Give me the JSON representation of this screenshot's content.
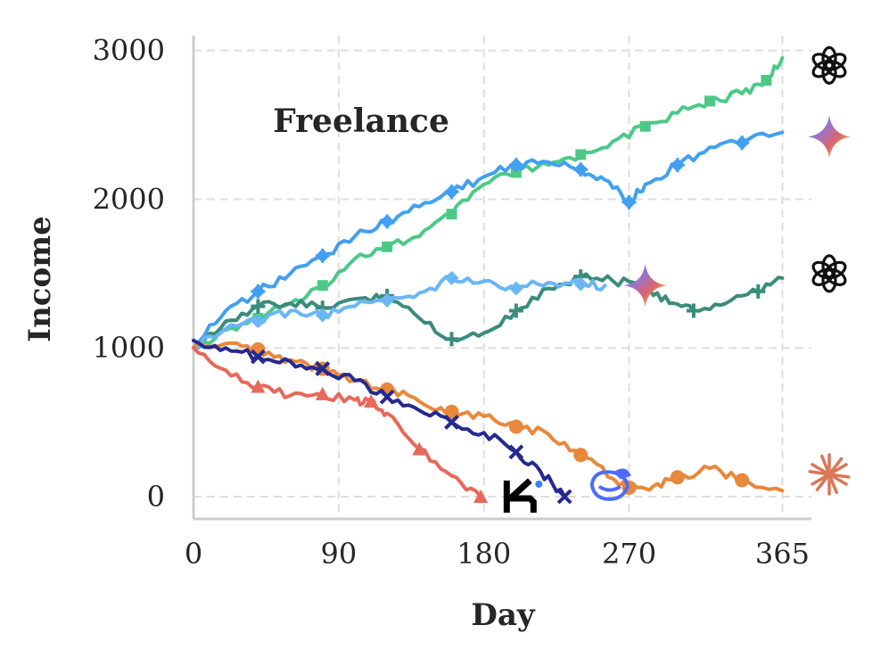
{
  "chart_data": {
    "type": "line",
    "title": "",
    "annotation": "Freelance",
    "xlabel": "Day",
    "ylabel": "Income",
    "xlim": [
      0,
      383
    ],
    "ylim": [
      -150,
      3100
    ],
    "xticks": [
      0,
      90,
      180,
      270,
      365
    ],
    "yticks": [
      0,
      1000,
      2000,
      3000
    ],
    "grid": true,
    "series": [
      {
        "color": "#4cc987",
        "marker": "square",
        "icon": "openai-logo-icon",
        "x": [
          0,
          20,
          40,
          60,
          80,
          100,
          120,
          140,
          160,
          180,
          200,
          220,
          240,
          260,
          280,
          300,
          320,
          340,
          355,
          365
        ],
        "y": [
          1000,
          1120,
          1200,
          1300,
          1420,
          1600,
          1680,
          1750,
          1900,
          2100,
          2180,
          2230,
          2300,
          2390,
          2490,
          2580,
          2660,
          2710,
          2800,
          2950
        ]
      },
      {
        "color": "#42a0f0",
        "marker": "plus-diamond",
        "icon": "gemini-star-icon",
        "x": [
          0,
          20,
          40,
          60,
          80,
          100,
          120,
          140,
          160,
          180,
          200,
          220,
          240,
          255,
          270,
          280,
          300,
          320,
          340,
          365
        ],
        "y": [
          1000,
          1250,
          1380,
          1500,
          1620,
          1750,
          1850,
          1950,
          2050,
          2150,
          2230,
          2250,
          2200,
          2130,
          1980,
          2100,
          2230,
          2350,
          2380,
          2450
        ]
      },
      {
        "color": "#3a8c7c",
        "marker": "plus",
        "icon": "openai-logo-icon",
        "x": [
          0,
          20,
          40,
          60,
          80,
          100,
          120,
          140,
          160,
          180,
          200,
          220,
          240,
          260,
          280,
          295,
          310,
          330,
          350,
          365
        ],
        "y": [
          1000,
          1180,
          1280,
          1300,
          1270,
          1330,
          1350,
          1200,
          1060,
          1100,
          1250,
          1400,
          1480,
          1450,
          1420,
          1300,
          1250,
          1300,
          1380,
          1470
        ]
      },
      {
        "color": "#6bb6f5",
        "marker": "diamond",
        "icon": "gemini-star-icon",
        "x": [
          0,
          20,
          40,
          60,
          80,
          100,
          120,
          140,
          160,
          180,
          200,
          220,
          240,
          255
        ],
        "y": [
          1000,
          1130,
          1180,
          1250,
          1220,
          1280,
          1320,
          1370,
          1470,
          1450,
          1400,
          1440,
          1430,
          1420
        ]
      },
      {
        "color": "#e8883a",
        "marker": "circle",
        "icon": "claude-burst-icon",
        "x": [
          0,
          20,
          40,
          60,
          80,
          100,
          120,
          140,
          160,
          180,
          200,
          220,
          240,
          260,
          270,
          285,
          300,
          320,
          340,
          365
        ],
        "y": [
          1000,
          1030,
          990,
          920,
          860,
          780,
          720,
          640,
          570,
          540,
          470,
          420,
          280,
          120,
          60,
          70,
          130,
          190,
          110,
          40
        ]
      },
      {
        "color": "#252a8f",
        "marker": "x",
        "icon": "kimi-logo-icon",
        "x": [
          0,
          20,
          40,
          60,
          80,
          100,
          120,
          140,
          160,
          180,
          200,
          215,
          230
        ],
        "y": [
          1050,
          1000,
          940,
          910,
          860,
          780,
          670,
          580,
          500,
          430,
          300,
          170,
          0
        ]
      },
      {
        "color": "#e8685a",
        "marker": "triangle",
        "icon": "",
        "x": [
          0,
          20,
          40,
          60,
          80,
          100,
          110,
          120,
          140,
          160,
          178
        ],
        "y": [
          1000,
          850,
          740,
          680,
          690,
          650,
          640,
          560,
          320,
          140,
          0
        ]
      }
    ],
    "end_icons": [
      {
        "name": "openai-logo-icon",
        "value": 2900
      },
      {
        "name": "gemini-star-icon",
        "value": 2420
      },
      {
        "name": "openai-logo-icon",
        "value": 1500
      },
      {
        "name": "claude-burst-icon",
        "value": 150
      }
    ],
    "inline_icons": [
      {
        "name": "kimi-logo-icon",
        "x": 203,
        "y": 0
      },
      {
        "name": "deepseek-whale-icon",
        "x": 258,
        "y": 80
      },
      {
        "name": "gemini-star-icon",
        "x": 280,
        "y": 1420
      }
    ]
  }
}
